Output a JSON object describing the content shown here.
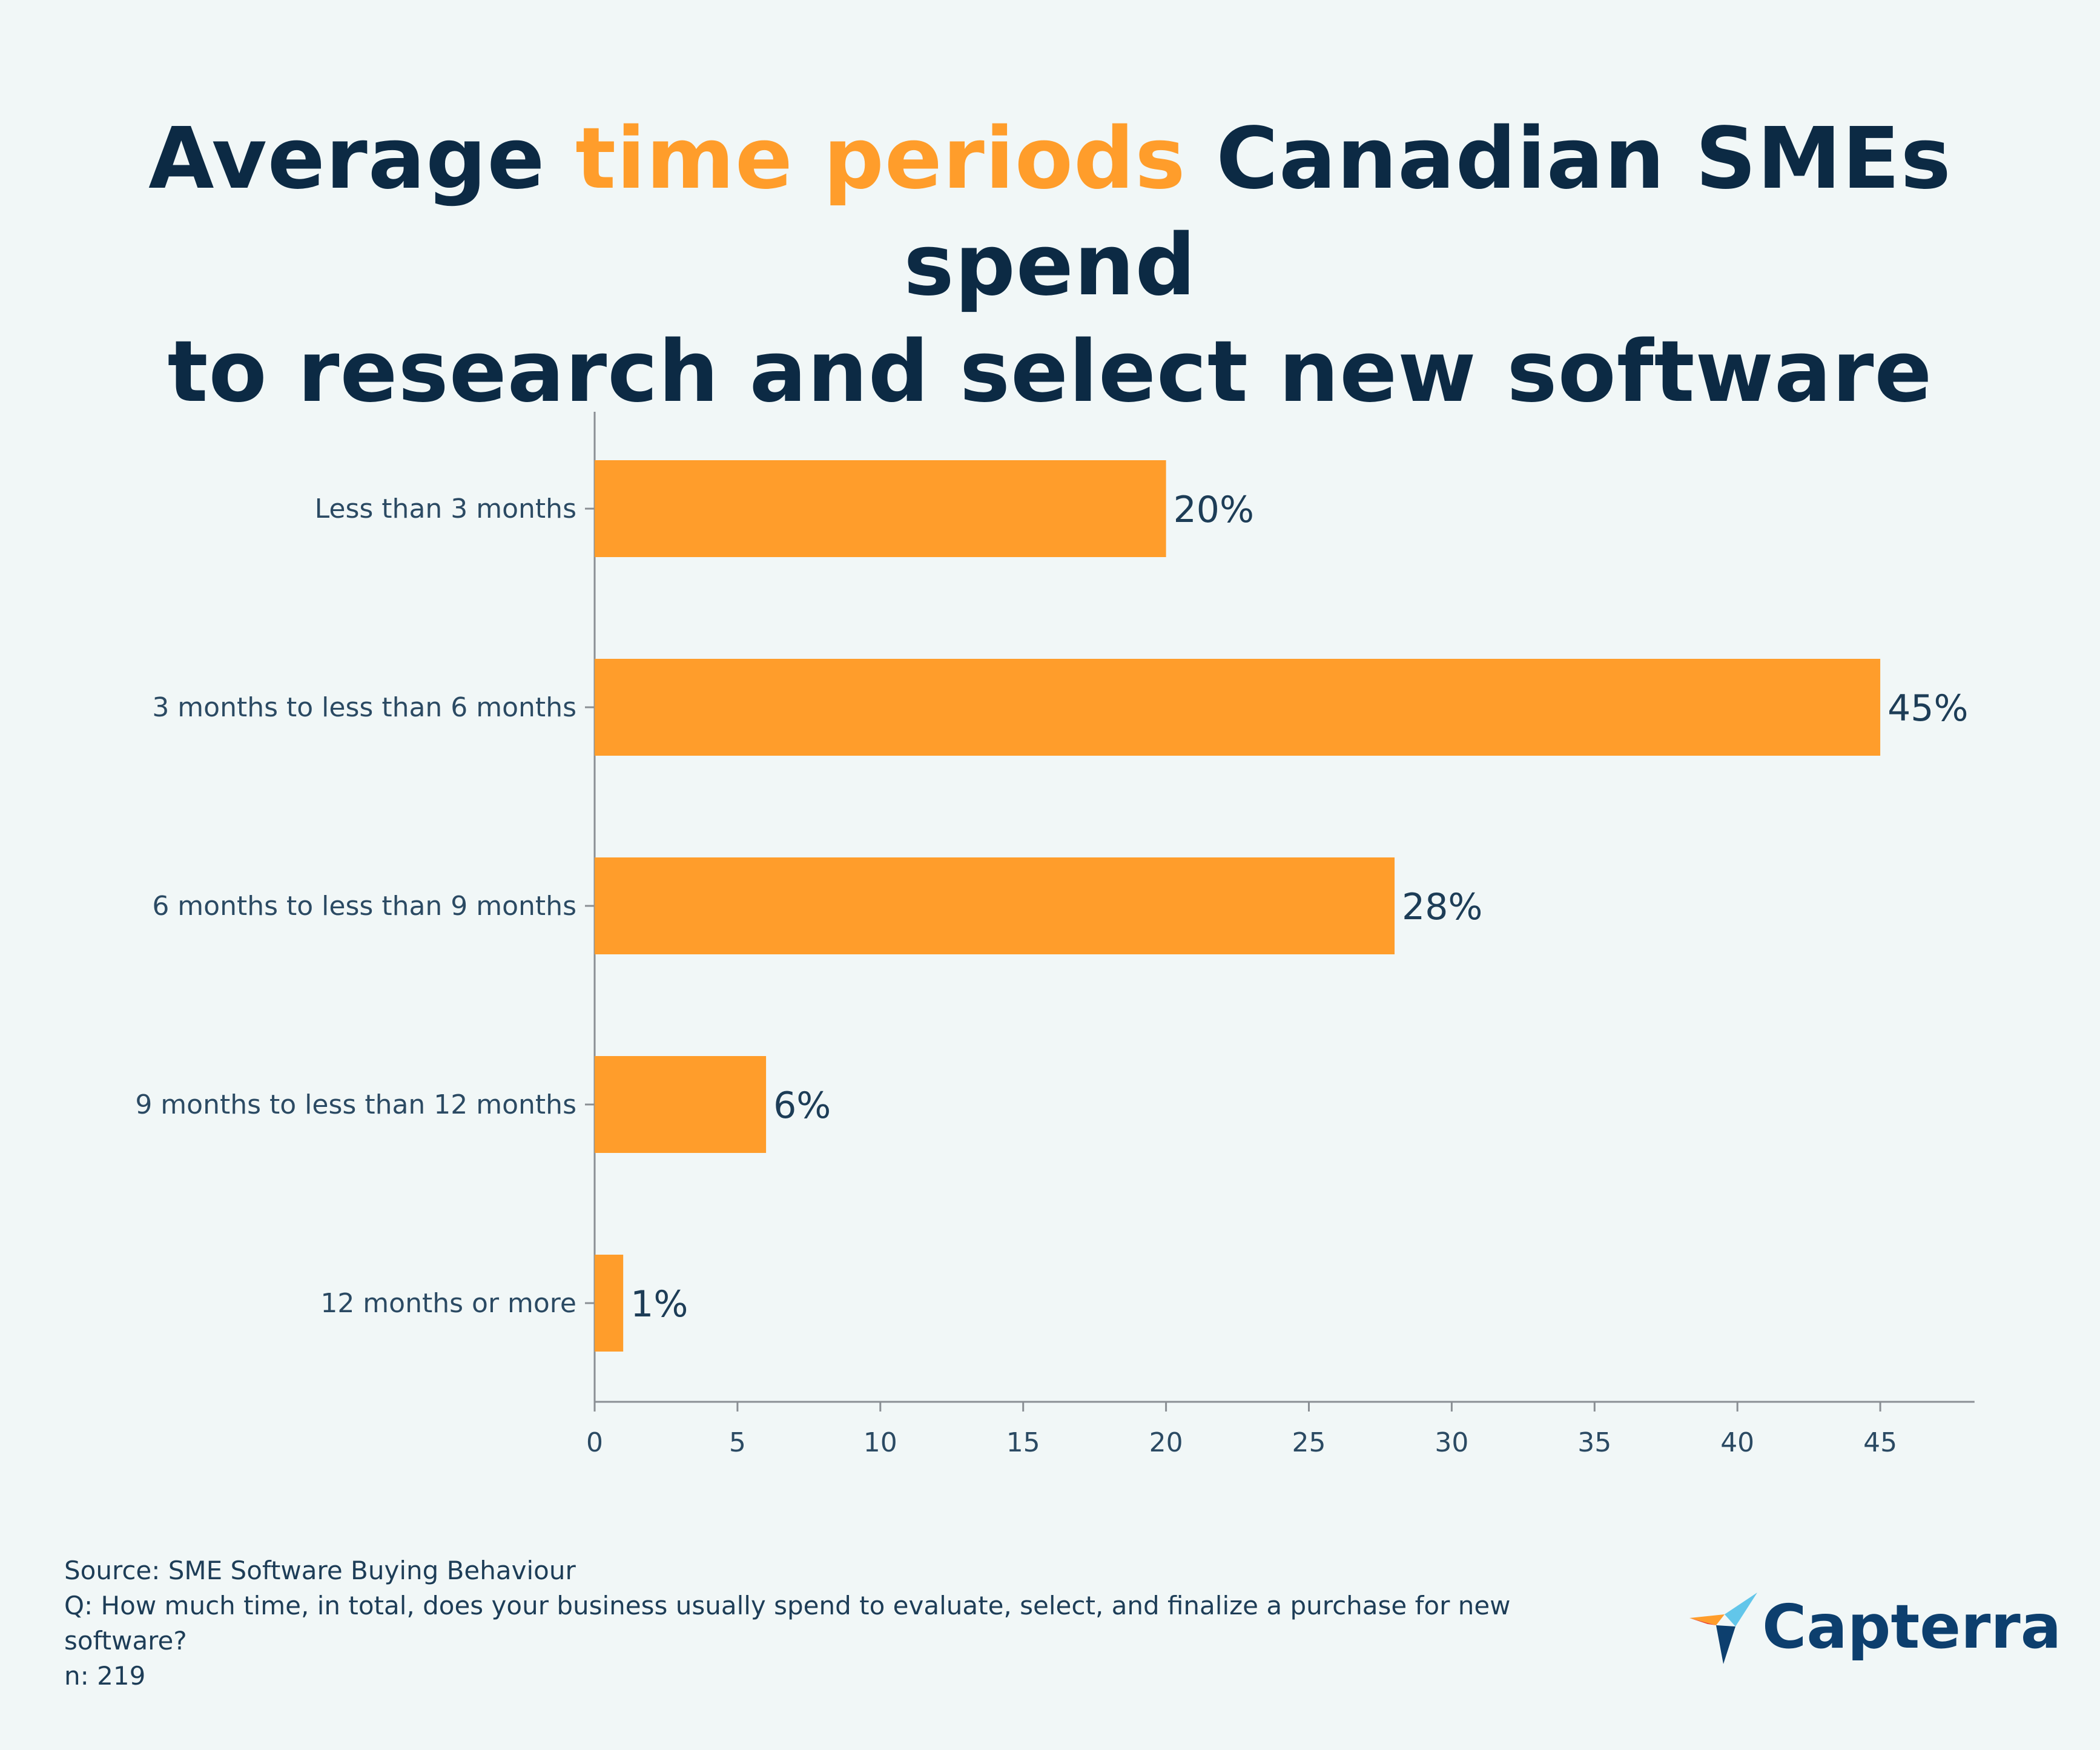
{
  "title": {
    "part1": "Average ",
    "highlight": "time periods",
    "part2": " Canadian SMEs spend",
    "line2": "to research and select new software"
  },
  "colors": {
    "bar": "#ff9d2b",
    "text": "#0c2a44",
    "axis": "#8a8f94"
  },
  "chart_data": {
    "type": "bar",
    "orientation": "horizontal",
    "title": "Average time periods Canadian SMEs spend to research and select new software",
    "categories": [
      "Less than 3 months",
      "3 months to less than 6 months",
      "6 months to less than 9 months",
      "9 months to less than 12 months",
      "12 months or more"
    ],
    "values": [
      20,
      45,
      28,
      6,
      1
    ],
    "data_labels": [
      "20%",
      "45%",
      "28%",
      "6%",
      "1%"
    ],
    "xlim": [
      0,
      48.3
    ],
    "xticks": [
      0,
      5,
      10,
      15,
      20,
      25,
      30,
      35,
      40,
      45
    ],
    "xlabel": "",
    "ylabel": "",
    "grid": false
  },
  "footer": {
    "source": "Source: SME Software Buying Behaviour",
    "question": "Q: How much time, in total, does your business usually spend to evaluate, select, and finalize a purchase for new software?",
    "n": "n: 219"
  },
  "logo": {
    "name": "Capterra"
  }
}
